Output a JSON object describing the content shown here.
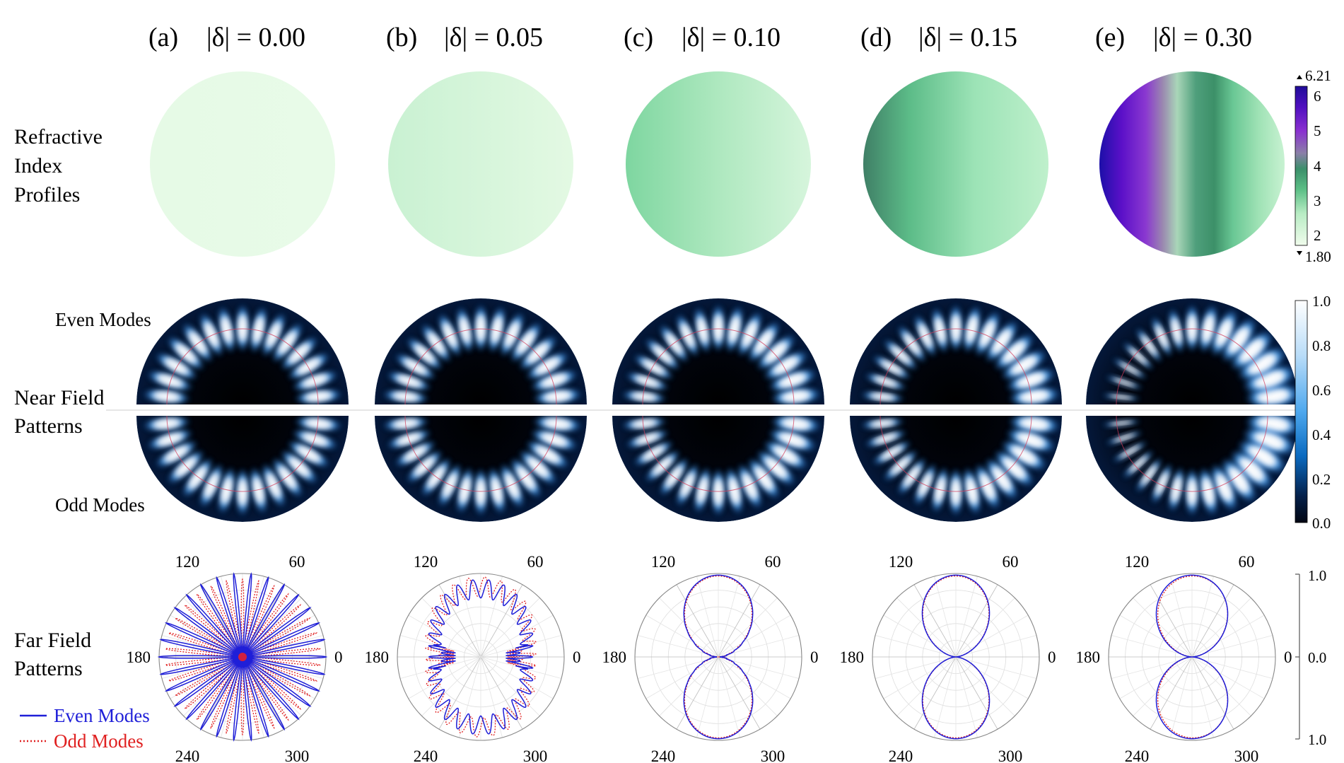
{
  "panels": [
    {
      "letter": "(a)",
      "delta_label": "|δ| = 0.00",
      "delta": 0.0
    },
    {
      "letter": "(b)",
      "delta_label": "|δ| = 0.05",
      "delta": 0.05
    },
    {
      "letter": "(c)",
      "delta_label": "|δ| = 0.10",
      "delta": 0.1
    },
    {
      "letter": "(d)",
      "delta_label": "|δ| = 0.15",
      "delta": 0.15
    },
    {
      "letter": "(e)",
      "delta_label": "|δ| = 0.30",
      "delta": 0.3
    }
  ],
  "row_labels": {
    "refractive": [
      "Refractive",
      "Index",
      "Profiles"
    ],
    "near": [
      "Near Field",
      "Patterns"
    ],
    "far": [
      "Far Field",
      "Patterns"
    ]
  },
  "mode_labels": {
    "even": "Even Modes",
    "odd": "Odd Modes"
  },
  "legend": {
    "even": {
      "label": "Even Modes",
      "color": "#1f1fd8",
      "style": "solid"
    },
    "odd": {
      "label": "Odd Modes",
      "color": "#e02020",
      "style": "dotted"
    }
  },
  "colorbars": {
    "refractive": {
      "ticks": [
        "6",
        "5",
        "4",
        "3",
        "2"
      ],
      "max_label": "6.21",
      "min_label": "1.80",
      "min": 1.8,
      "max": 6.21
    },
    "near": {
      "ticks": [
        "1.0",
        "0.8",
        "0.6",
        "0.4",
        "0.2",
        "0.0"
      ],
      "min": 0.0,
      "max": 1.0
    },
    "far": {
      "ticks": [
        "1.0",
        "0.0",
        "1.0"
      ]
    }
  },
  "polar_angle_labels": [
    "120",
    "60",
    "180",
    "0",
    "240",
    "300"
  ],
  "chart_data": [
    {
      "type": "polar",
      "panel": "(a)",
      "delta": 0.0,
      "angular_ticks_deg": [
        0,
        60,
        120,
        180,
        240,
        300
      ],
      "series": [
        {
          "name": "Even Modes",
          "pattern": "30 narrow lobes, full radius"
        },
        {
          "name": "Odd Modes",
          "pattern": "30 narrow lobes, interleaved"
        }
      ]
    },
    {
      "type": "polar",
      "panel": "(b)",
      "delta": 0.05,
      "angular_ticks_deg": [
        0,
        60,
        120,
        180,
        240,
        300
      ],
      "series": [
        {
          "name": "Even Modes",
          "pattern": "elliptical envelope with ripple"
        },
        {
          "name": "Odd Modes",
          "pattern": "elliptical envelope with ripple"
        }
      ]
    },
    {
      "type": "polar",
      "panel": "(c)",
      "delta": 0.1,
      "angular_ticks_deg": [
        0,
        60,
        120,
        180,
        240,
        300
      ],
      "series": [
        {
          "name": "Even Modes",
          "pattern": "vertical dipole lobes"
        },
        {
          "name": "Odd Modes",
          "pattern": "vertical dipole lobes"
        }
      ]
    },
    {
      "type": "polar",
      "panel": "(d)",
      "delta": 0.15,
      "angular_ticks_deg": [
        0,
        60,
        120,
        180,
        240,
        300
      ],
      "series": [
        {
          "name": "Even Modes",
          "pattern": "vertical dipole lobes"
        },
        {
          "name": "Odd Modes",
          "pattern": "vertical dipole lobes"
        }
      ]
    },
    {
      "type": "polar",
      "panel": "(e)",
      "delta": 0.3,
      "angular_ticks_deg": [
        0,
        60,
        120,
        180,
        240,
        300
      ],
      "series": [
        {
          "name": "Even Modes",
          "pattern": "vertical dipole lobes"
        },
        {
          "name": "Odd Modes",
          "pattern": "vertical dipole lobes"
        }
      ]
    }
  ]
}
